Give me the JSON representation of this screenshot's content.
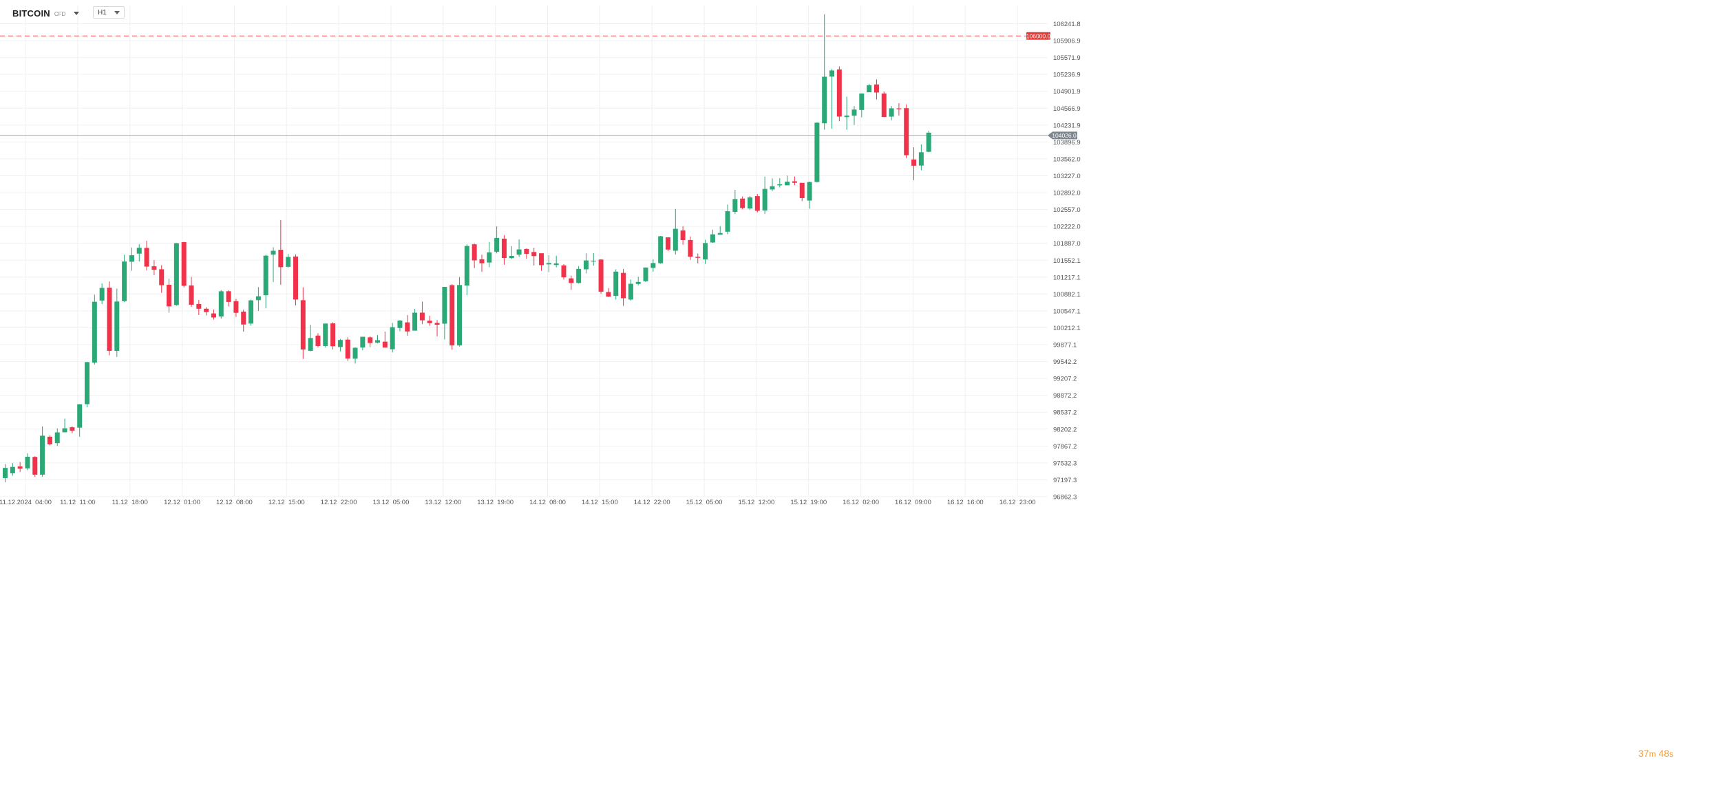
{
  "toolbar": {
    "symbol": "BITCOIN",
    "symbol_type": "CFD",
    "timeframe": "H1"
  },
  "countdown": {
    "minutes": "37",
    "minutes_unit": "m",
    "seconds": "48",
    "seconds_unit": "s"
  },
  "colors": {
    "up": "#2aa876",
    "down": "#f0334a",
    "grid": "#f0f0f0",
    "alert_line": "#ee5252",
    "current_price_line": "#9aa3ab",
    "countdown": "#f59d2f"
  },
  "chart_data": {
    "type": "candlestick",
    "grid": true,
    "y_tick_labels": [
      "106241.8",
      "105906.9",
      "105571.9",
      "105236.9",
      "104901.9",
      "104566.9",
      "104231.9",
      "103896.9",
      "103562.0",
      "103227.0",
      "102892.0",
      "102557.0",
      "102222.0",
      "101887.0",
      "101552.1",
      "101217.1",
      "100882.1",
      "100547.1",
      "100212.1",
      "99877.1",
      "99542.2",
      "99207.2",
      "98872.2",
      "98537.2",
      "98202.2",
      "97867.2",
      "97532.3",
      "97197.3",
      "96862.3"
    ],
    "ylim": [
      96862.3,
      106241.8
    ],
    "x_tick_labels": [
      "11.12.2024  04:00",
      "11.12  11:00",
      "11.12  18:00",
      "12.12  01:00",
      "12.12  08:00",
      "12.12  15:00",
      "12.12  22:00",
      "13.12  05:00",
      "13.12  12:00",
      "13.12  19:00",
      "14.12  08:00",
      "14.12  15:00",
      "14.12  22:00",
      "15.12  05:00",
      "15.12  12:00",
      "15.12  19:00",
      "16.12  02:00",
      "16.12  09:00",
      "16.12  16:00",
      "16.12  23:00"
    ],
    "alert_level": {
      "value": 106000.0,
      "label": "106000.0"
    },
    "current_price": {
      "value": 104026.0,
      "label": "104026.0"
    },
    "candles": [
      [
        97231,
        97433,
        97148,
        97509
      ],
      [
        97326,
        97453,
        97278,
        97531
      ],
      [
        97462,
        97418,
        97351,
        97550
      ],
      [
        97424,
        97654,
        97387,
        97724
      ],
      [
        97651,
        97299,
        97256,
        97665
      ],
      [
        97299,
        98072,
        97260,
        98258
      ],
      [
        98052,
        97902,
        97880,
        98078
      ],
      [
        97924,
        98137,
        97869,
        98216
      ],
      [
        98140,
        98219,
        98139,
        98409
      ],
      [
        98239,
        98169,
        98121,
        98259
      ],
      [
        98231,
        98696,
        98050,
        98698
      ],
      [
        98697,
        99531,
        98633,
        99536
      ],
      [
        99521,
        100728,
        99483,
        100869
      ],
      [
        100752,
        101003,
        100682,
        101091
      ],
      [
        101006,
        99755,
        99666,
        101131
      ],
      [
        99754,
        100733,
        99634,
        100989
      ],
      [
        100740,
        101526,
        100722,
        101661
      ],
      [
        101522,
        101650,
        101343,
        101804
      ],
      [
        101682,
        101799,
        101526,
        101869
      ],
      [
        101796,
        101425,
        101351,
        101939
      ],
      [
        101431,
        101363,
        101254,
        101554
      ],
      [
        101373,
        101057,
        100907,
        101454
      ],
      [
        101065,
        100637,
        100511,
        101184
      ],
      [
        100663,
        101890,
        100649,
        101895
      ],
      [
        101910,
        101044,
        101012,
        101917
      ],
      [
        101052,
        100669,
        100625,
        101221
      ],
      [
        100683,
        100589,
        100465,
        100764
      ],
      [
        100590,
        100523,
        100458,
        100621
      ],
      [
        100497,
        100416,
        100374,
        100577
      ],
      [
        100435,
        100936,
        100393,
        100961
      ],
      [
        100937,
        100725,
        100635,
        100957
      ],
      [
        100740,
        100509,
        100428,
        100786
      ],
      [
        100533,
        100277,
        100136,
        100572
      ],
      [
        100295,
        100756,
        100256,
        100770
      ],
      [
        100760,
        100836,
        100545,
        101019
      ],
      [
        100858,
        101642,
        100598,
        101660
      ],
      [
        101663,
        101739,
        101120,
        101809
      ],
      [
        101759,
        101414,
        101065,
        102349
      ],
      [
        101421,
        101617,
        101405,
        101674
      ],
      [
        101626,
        100773,
        100658,
        101668
      ],
      [
        100759,
        99781,
        99595,
        101014
      ],
      [
        99755,
        100009,
        99745,
        100273
      ],
      [
        100057,
        99851,
        99823,
        100102
      ],
      [
        99851,
        100296,
        99822,
        100293
      ],
      [
        100299,
        99847,
        99783,
        100321
      ],
      [
        99831,
        99970,
        99743,
        99991
      ],
      [
        99977,
        99602,
        99555,
        100025
      ],
      [
        99599,
        99815,
        99503,
        99824
      ],
      [
        99820,
        100034,
        99767,
        100032
      ],
      [
        100023,
        99910,
        99830,
        100041
      ],
      [
        99918,
        99967,
        99903,
        100066
      ],
      [
        99937,
        99820,
        99816,
        100137
      ],
      [
        99786,
        100224,
        99722,
        100307
      ],
      [
        100209,
        100354,
        100144,
        100367
      ],
      [
        100319,
        100139,
        100055,
        100464
      ],
      [
        100155,
        100511,
        100163,
        100587
      ],
      [
        100512,
        100360,
        100283,
        100732
      ],
      [
        100353,
        100303,
        100251,
        100449
      ],
      [
        100309,
        100273,
        100043,
        100365
      ],
      [
        100293,
        101023,
        99980,
        100990
      ],
      [
        101058,
        99862,
        99777,
        101078
      ],
      [
        99862,
        101060,
        99842,
        101219
      ],
      [
        101049,
        101834,
        100861,
        101867
      ],
      [
        101867,
        101549,
        101397,
        101883
      ],
      [
        101571,
        101492,
        101322,
        101662
      ],
      [
        101506,
        101708,
        101414,
        101913
      ],
      [
        101720,
        101994,
        101686,
        102223
      ],
      [
        101980,
        101596,
        101462,
        102050
      ],
      [
        101594,
        101637,
        101576,
        101832
      ],
      [
        101662,
        101766,
        101623,
        101964
      ],
      [
        101775,
        101678,
        101580,
        101786
      ],
      [
        101715,
        101634,
        101447,
        101798
      ],
      [
        101690,
        101455,
        101342,
        101661
      ],
      [
        101469,
        101497,
        101315,
        101653
      ],
      [
        101457,
        101489,
        101411,
        101642
      ],
      [
        101450,
        101213,
        101169,
        101474
      ],
      [
        101192,
        101100,
        100964,
        101247
      ],
      [
        101101,
        101380,
        101089,
        101436
      ],
      [
        101372,
        101547,
        101289,
        101688
      ],
      [
        101533,
        101542,
        101444,
        101692
      ],
      [
        101565,
        100928,
        100888,
        101573
      ],
      [
        100921,
        100829,
        100822,
        100999
      ],
      [
        100845,
        101326,
        100773,
        101372
      ],
      [
        101301,
        100798,
        100647,
        101377
      ],
      [
        100772,
        101085,
        100749,
        101170
      ],
      [
        101082,
        101121,
        101054,
        101225
      ],
      [
        101135,
        101407,
        101120,
        101408
      ],
      [
        101399,
        101496,
        101325,
        101570
      ],
      [
        101493,
        102027,
        101480,
        102033
      ],
      [
        102006,
        101763,
        101735,
        102008
      ],
      [
        101740,
        102175,
        101663,
        102568
      ],
      [
        102142,
        101952,
        101859,
        102227
      ],
      [
        101952,
        101621,
        101557,
        102023
      ],
      [
        101619,
        101599,
        101489,
        101684
      ],
      [
        101567,
        101892,
        101477,
        101958
      ],
      [
        101903,
        102065,
        101896,
        102157
      ],
      [
        102059,
        102091,
        102077,
        102228
      ],
      [
        102117,
        102523,
        102066,
        102656
      ],
      [
        102511,
        102765,
        102469,
        102947
      ],
      [
        102774,
        102587,
        102558,
        102815
      ],
      [
        102579,
        102799,
        102547,
        102826
      ],
      [
        102823,
        102532,
        102503,
        102866
      ],
      [
        102539,
        102966,
        102472,
        103212
      ],
      [
        102955,
        103019,
        102921,
        103176
      ],
      [
        103037,
        103058,
        102994,
        103178
      ],
      [
        103038,
        103109,
        103062,
        103232
      ],
      [
        103117,
        103087,
        103041,
        103212
      ],
      [
        103087,
        102784,
        102724,
        103061
      ],
      [
        102735,
        103102,
        102575,
        103111
      ],
      [
        103104,
        104279,
        103094,
        104286
      ],
      [
        104267,
        105191,
        104140,
        106430
      ],
      [
        105193,
        105316,
        104160,
        105342
      ],
      [
        105335,
        104401,
        104307,
        105396
      ],
      [
        104390,
        104421,
        104139,
        104796
      ],
      [
        104419,
        104540,
        104234,
        104607
      ],
      [
        104532,
        104859,
        104386,
        104859
      ],
      [
        104882,
        105023,
        104888,
        105049
      ],
      [
        105038,
        104878,
        104739,
        105138
      ],
      [
        104858,
        104391,
        104401,
        104897
      ],
      [
        104399,
        104564,
        104326,
        104610
      ],
      [
        104563,
        104549,
        104421,
        104668
      ],
      [
        104568,
        103634,
        103577,
        104642
      ],
      [
        103550,
        103426,
        103140,
        103792
      ],
      [
        103429,
        103693,
        103336,
        103849
      ],
      [
        103702,
        104081,
        103691,
        104117
      ]
    ]
  }
}
